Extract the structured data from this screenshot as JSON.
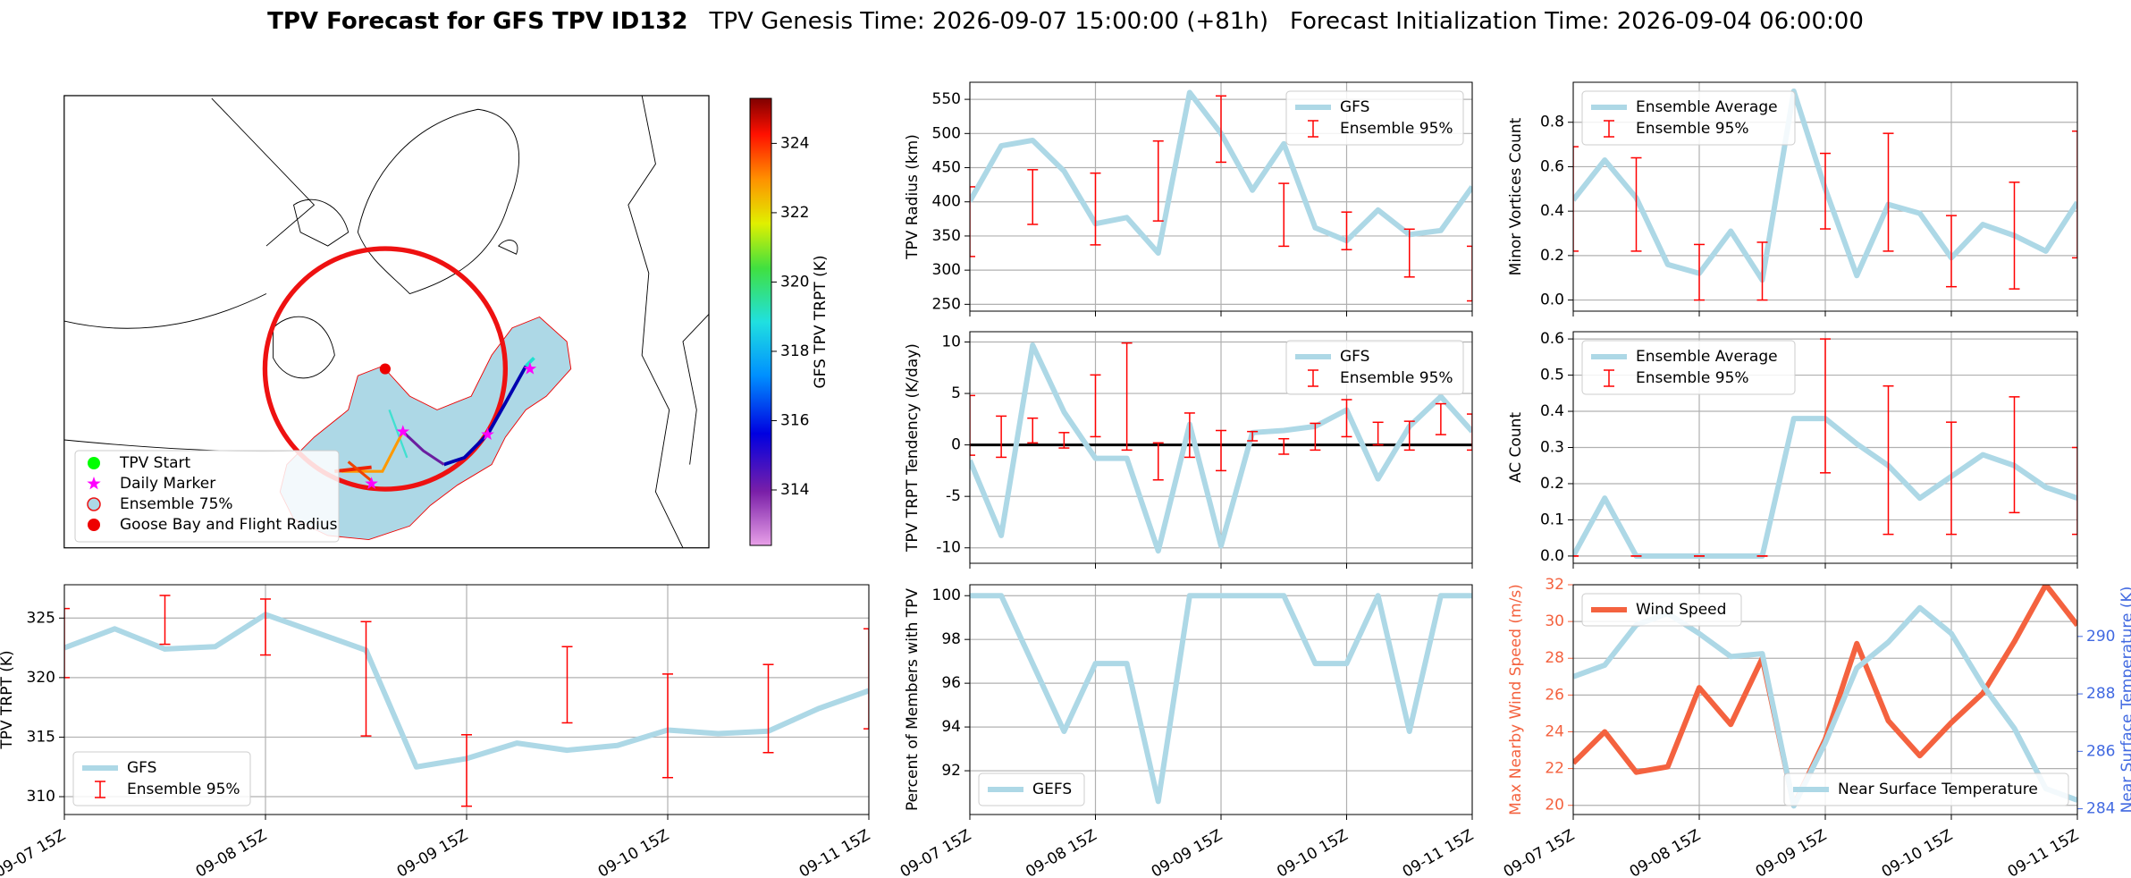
{
  "figure": {
    "title": "TPV Forecast for GFS TPV ID132",
    "subtitles": [
      "TPV Genesis Time: 2026-09-07 15:00:00 (+81h)",
      "Forecast Initialization Time: 2026-09-04 06:00:00"
    ]
  },
  "chart_data": [
    {
      "type": "map",
      "legend": [
        {
          "name": "TPV Start",
          "color": "#00ff00",
          "marker": "circle"
        },
        {
          "name": "Daily Marker",
          "color": "#ff00ff",
          "marker": "star"
        },
        {
          "name": "Ensemble 75%",
          "color": "#add8e6",
          "edge": "#ee1111",
          "marker": "circle"
        },
        {
          "name": "Goose Bay and Flight Radius",
          "color": "#ee0000",
          "marker": "circle"
        }
      ],
      "colorbar": {
        "label": "GFS TPV TRPT (K)",
        "lim": [
          312.4,
          325.3
        ],
        "ticks": [
          314,
          316,
          318,
          320,
          322,
          324
        ]
      }
    },
    {
      "type": "line",
      "ylabel": "TPV TRPT (K)",
      "xlim": [
        0,
        96
      ],
      "xticks": [
        {
          "value": 0,
          "label": "09-07 15Z"
        },
        {
          "value": 24,
          "label": "09-08 15Z"
        },
        {
          "value": 48,
          "label": "09-09 15Z"
        },
        {
          "value": 72,
          "label": "09-10 15Z"
        },
        {
          "value": 96,
          "label": "09-11 15Z"
        }
      ],
      "ylim": [
        308.5,
        327.8
      ],
      "yticks": [
        310,
        315,
        320,
        325
      ],
      "grid": true,
      "legend": "lower left",
      "x": [
        0,
        6,
        12,
        18,
        24,
        30,
        36,
        42,
        48,
        54,
        60,
        66,
        72,
        78,
        84,
        90,
        96
      ],
      "series": [
        {
          "name": "GFS",
          "color": "#add8e6",
          "values": [
            322.5,
            324.1,
            322.4,
            322.6,
            325.3,
            323.8,
            322.3,
            312.5,
            313.2,
            314.5,
            313.9,
            314.3,
            315.6,
            315.3,
            315.5,
            317.4,
            318.9
          ]
        },
        {
          "name": "Ensemble 95%",
          "type": "errorbar",
          "color": "#ff0000",
          "x": [
            0,
            12,
            24,
            36,
            48,
            60,
            72,
            84,
            96
          ],
          "low": [
            320,
            322.8,
            321.9,
            315.1,
            309.2,
            316.2,
            311.6,
            313.7,
            315.7
          ],
          "high": [
            325.8,
            326.9,
            326.6,
            324.7,
            315.2,
            322.6,
            320.3,
            321.1,
            324.1
          ]
        }
      ]
    },
    {
      "type": "line",
      "ylabel": "TPV Radius (km)",
      "xlim": [
        0,
        96
      ],
      "xticks": [
        0,
        24,
        48,
        72,
        96
      ],
      "ylim": [
        240,
        575
      ],
      "yticks": [
        250,
        300,
        350,
        400,
        450,
        500,
        550
      ],
      "grid": true,
      "legend": "upper right",
      "x": [
        0,
        6,
        12,
        18,
        24,
        30,
        36,
        42,
        48,
        54,
        60,
        66,
        72,
        78,
        84,
        90,
        96
      ],
      "series": [
        {
          "name": "GFS",
          "color": "#add8e6",
          "values": [
            401,
            482,
            490,
            445,
            368,
            377,
            325,
            560,
            500,
            417,
            485,
            362,
            343,
            388,
            352,
            358,
            422
          ]
        },
        {
          "name": "Ensemble 95%",
          "type": "errorbar",
          "color": "#ff0000",
          "x": [
            0,
            12,
            24,
            36,
            48,
            60,
            72,
            84,
            96
          ],
          "low": [
            320,
            367,
            337,
            372,
            458,
            335,
            330,
            290,
            255
          ],
          "high": [
            422,
            447,
            442,
            489,
            555,
            427,
            385,
            360,
            335
          ]
        }
      ]
    },
    {
      "type": "line",
      "ylabel": "TPV TRPT Tendency (K/day)",
      "xlim": [
        0,
        96
      ],
      "xticks": [
        0,
        24,
        48,
        72,
        96
      ],
      "ylim": [
        -11.5,
        11
      ],
      "yticks": [
        -10,
        -5,
        0,
        5,
        10
      ],
      "grid": true,
      "legend": "upper right",
      "hline": 0,
      "hline_color": "#000000",
      "x": [
        0,
        6,
        12,
        18,
        24,
        30,
        36,
        42,
        48,
        54,
        60,
        66,
        72,
        78,
        84,
        90,
        96
      ],
      "series": [
        {
          "name": "GFS",
          "color": "#add8e6",
          "values": [
            -1.5,
            -8.8,
            9.7,
            3.2,
            -1.3,
            -1.3,
            -10.3,
            2.0,
            -9.8,
            1.2,
            1.4,
            1.8,
            3.4,
            -3.3,
            1.8,
            4.7,
            1.3
          ]
        },
        {
          "name": "Ensemble 95%",
          "type": "errorbar",
          "color": "#ff0000",
          "x": [
            0,
            6,
            12,
            18,
            24,
            30,
            36,
            42,
            48,
            54,
            60,
            66,
            72,
            78,
            84,
            90,
            96
          ],
          "low": [
            -1,
            -1.2,
            0.2,
            -0.3,
            0.8,
            -0.5,
            -3.4,
            -1.2,
            -2.5,
            0.4,
            -0.9,
            -0.5,
            0.8,
            0,
            -0.5,
            1,
            -0.5
          ],
          "high": [
            4.8,
            2.8,
            2.6,
            1.2,
            6.8,
            9.9,
            0.2,
            3.1,
            1.4,
            1.3,
            0.6,
            2.1,
            4.4,
            2.2,
            2.3,
            4,
            3
          ]
        }
      ]
    },
    {
      "type": "line",
      "ylabel": "Percent of Members with TPV",
      "xlim": [
        0,
        96
      ],
      "xticks": [
        {
          "value": 0,
          "label": "09-07 15Z"
        },
        {
          "value": 24,
          "label": "09-08 15Z"
        },
        {
          "value": 48,
          "label": "09-09 15Z"
        },
        {
          "value": 72,
          "label": "09-10 15Z"
        },
        {
          "value": 96,
          "label": "09-11 15Z"
        }
      ],
      "ylim": [
        90,
        100.5
      ],
      "yticks": [
        92,
        94,
        96,
        98,
        100
      ],
      "grid": true,
      "legend": "lower left",
      "x": [
        0,
        6,
        12,
        18,
        24,
        30,
        36,
        42,
        48,
        54,
        60,
        66,
        72,
        78,
        84,
        90,
        96
      ],
      "series": [
        {
          "name": "GEFS",
          "color": "#add8e6",
          "values": [
            100,
            100,
            96.9,
            93.8,
            96.9,
            96.9,
            90.6,
            100,
            100,
            100,
            100,
            96.9,
            96.9,
            100,
            93.8,
            100,
            100
          ]
        }
      ]
    },
    {
      "type": "line",
      "ylabel": "Minor Vortices Count",
      "xlim": [
        0,
        96
      ],
      "xticks": [
        0,
        24,
        48,
        72,
        96
      ],
      "ylim": [
        -0.05,
        0.98
      ],
      "yticks": [
        {
          "value": 0,
          "label": "0.0"
        },
        0.2,
        0.4,
        0.6,
        0.8
      ],
      "grid": true,
      "legend": "upper left",
      "x": [
        0,
        6,
        12,
        18,
        24,
        30,
        36,
        42,
        48,
        54,
        60,
        66,
        72,
        78,
        84,
        90,
        96
      ],
      "series": [
        {
          "name": "Ensemble Average",
          "color": "#add8e6",
          "values": [
            0.45,
            0.63,
            0.46,
            0.16,
            0.12,
            0.31,
            0.09,
            0.94,
            0.5,
            0.11,
            0.43,
            0.39,
            0.19,
            0.34,
            0.29,
            0.22,
            0.44
          ]
        },
        {
          "name": "Ensemble 95%",
          "type": "errorbar",
          "color": "#ff0000",
          "x": [
            0,
            12,
            24,
            36,
            48,
            60,
            72,
            84,
            96
          ],
          "low": [
            0.22,
            0.22,
            0,
            0,
            0.32,
            0.22,
            0.06,
            0.05,
            0.19
          ],
          "high": [
            0.69,
            0.64,
            0.25,
            0.26,
            0.66,
            0.75,
            0.38,
            0.53,
            0.76
          ]
        }
      ]
    },
    {
      "type": "line",
      "ylabel": "AC Count",
      "xlim": [
        0,
        96
      ],
      "xticks": [
        0,
        24,
        48,
        72,
        96
      ],
      "ylim": [
        -0.02,
        0.62
      ],
      "yticks": [
        {
          "value": 0,
          "label": "0.0"
        },
        0.1,
        0.2,
        0.3,
        0.4,
        0.5,
        0.6
      ],
      "grid": true,
      "legend": "upper left",
      "x": [
        0,
        6,
        12,
        18,
        24,
        30,
        36,
        42,
        48,
        54,
        60,
        66,
        72,
        78,
        84,
        90,
        96
      ],
      "series": [
        {
          "name": "Ensemble Average",
          "color": "#add8e6",
          "values": [
            0,
            0.16,
            0,
            0,
            0,
            0,
            0,
            0.38,
            0.38,
            0.31,
            0.25,
            0.16,
            0.22,
            0.28,
            0.25,
            0.19,
            0.16
          ]
        },
        {
          "name": "Ensemble 95%",
          "type": "errorbar",
          "color": "#ff0000",
          "x": [
            0,
            12,
            24,
            36,
            48,
            60,
            72,
            84,
            96
          ],
          "low": [
            0,
            0,
            0,
            0,
            0.23,
            0.06,
            0.06,
            0.12,
            0.06
          ],
          "high": [
            0,
            0,
            0,
            0,
            0.6,
            0.47,
            0.37,
            0.44,
            0.3
          ]
        }
      ]
    },
    {
      "type": "line",
      "ylabel": "Max Nearby Wind Speed (m/s)",
      "y2label": "Near Surface Temperature (K)",
      "ycolor": "#f4623f",
      "y2color": "#4169e1",
      "xlim": [
        0,
        96
      ],
      "xticks": [
        {
          "value": 0,
          "label": "09-07 15Z"
        },
        {
          "value": 24,
          "label": "09-08 15Z"
        },
        {
          "value": 48,
          "label": "09-09 15Z"
        },
        {
          "value": 72,
          "label": "09-10 15Z"
        },
        {
          "value": 96,
          "label": "09-11 15Z"
        }
      ],
      "ylim": [
        19.5,
        32
      ],
      "yticks": [
        20,
        22,
        24,
        26,
        28,
        30,
        32
      ],
      "y2lim": [
        283.8,
        291.8
      ],
      "y2ticks": [
        284,
        286,
        288,
        290
      ],
      "grid": true,
      "x": [
        0,
        6,
        12,
        18,
        24,
        30,
        36,
        42,
        48,
        54,
        60,
        66,
        72,
        78,
        84,
        90,
        96
      ],
      "series": [
        {
          "name": "Wind Speed",
          "color": "#f4623f",
          "legend": "upper left",
          "values": [
            22.3,
            24,
            21.8,
            22.1,
            26.4,
            24.4,
            28,
            20,
            23.6,
            28.8,
            24.6,
            22.7,
            24.5,
            26.1,
            28.9,
            32,
            29.8
          ]
        },
        {
          "name": "Near Surface Temperature",
          "color": "#add8e6",
          "axis": "y2",
          "legend": "lower right",
          "values": [
            288.6,
            289,
            290.4,
            290.8,
            290.1,
            289.3,
            289.4,
            284.1,
            286.3,
            288.9,
            289.8,
            291,
            290.1,
            288.3,
            286.8,
            284.7,
            284.3
          ]
        }
      ]
    }
  ]
}
